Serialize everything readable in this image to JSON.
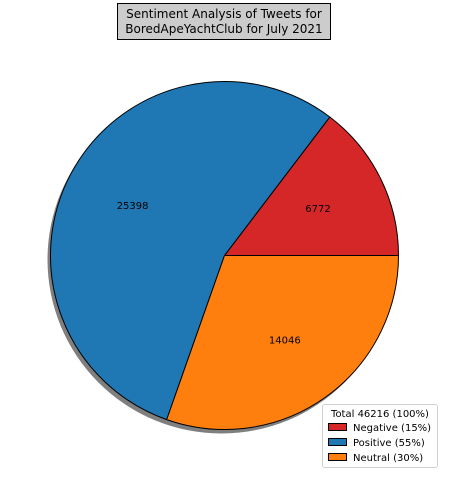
{
  "chart_data": {
    "type": "pie",
    "title": "Sentiment Analysis of Tweets for\n BoredApeYachtClub for July 2021",
    "categories": [
      "Negative",
      "Positive",
      "Neutral"
    ],
    "values": [
      6772,
      25398,
      14046
    ],
    "value_labels": [
      "6772",
      "25398",
      "14046"
    ],
    "colors": [
      "#d62728",
      "#1f77b4",
      "#ff7f0e"
    ],
    "legend": {
      "title": "Total 46216 (100%)",
      "entries": [
        "Negative (15%)",
        "Positive (55%)",
        "Neutral (30%)"
      ],
      "placement": "lower-right"
    },
    "shadow": true,
    "start_angle_deg": 0,
    "direction": "counterclockwise"
  }
}
